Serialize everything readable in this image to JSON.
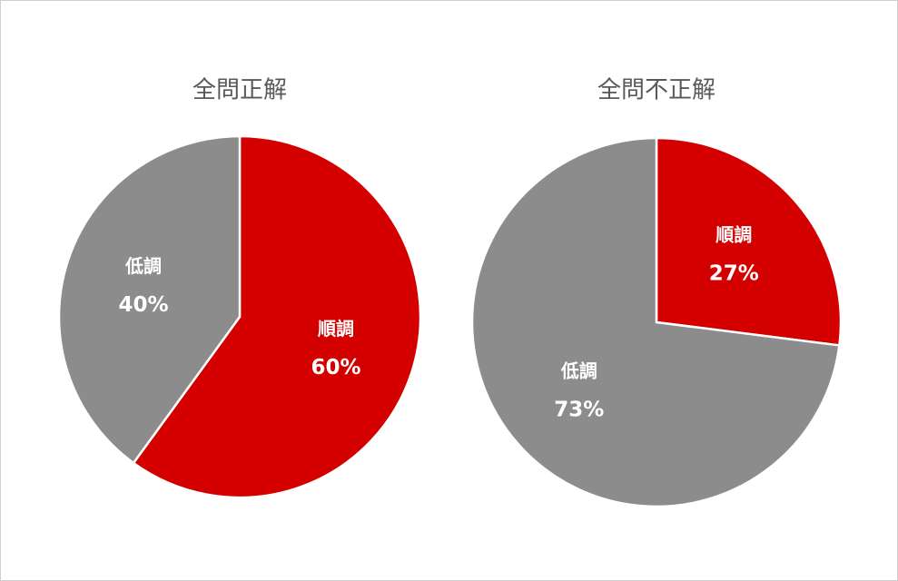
{
  "chart_data": [
    {
      "type": "pie",
      "title": "全問正解",
      "categories": [
        "順調",
        "低調"
      ],
      "values": [
        60,
        40
      ],
      "value_labels": [
        "60%",
        "40%"
      ],
      "colors": [
        "#d40000",
        "#8c8c8c"
      ]
    },
    {
      "type": "pie",
      "title": "全問不正解",
      "categories": [
        "順調",
        "低調"
      ],
      "values": [
        27,
        73
      ],
      "value_labels": [
        "27%",
        "73%"
      ],
      "colors": [
        "#d40000",
        "#8c8c8c"
      ]
    }
  ]
}
